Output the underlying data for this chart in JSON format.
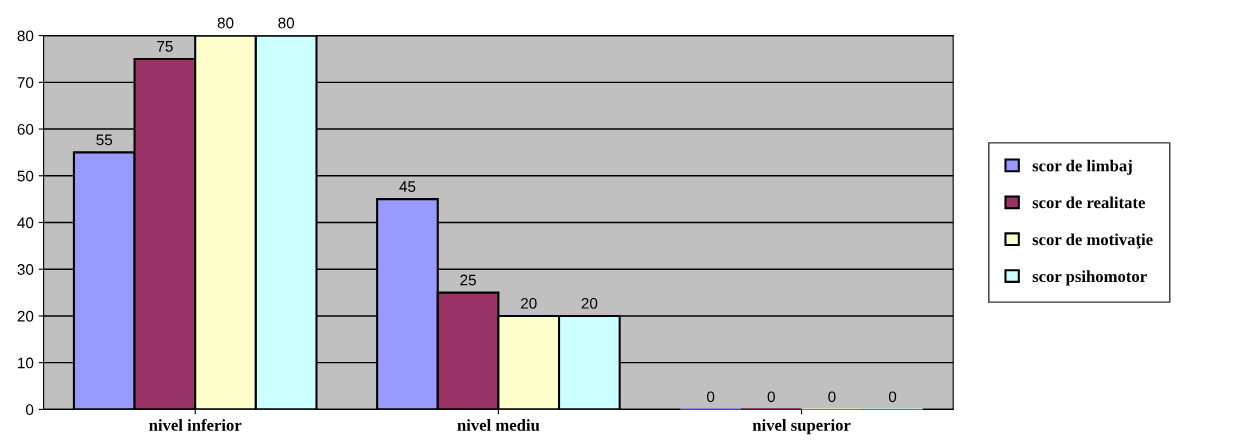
{
  "chart_data": {
    "type": "bar",
    "categories": [
      "nivel inferior",
      "nivel mediu",
      "nivel superior"
    ],
    "series": [
      {
        "name": "scor de limbaj",
        "color": "#9999ff",
        "values": [
          55,
          45,
          0
        ]
      },
      {
        "name": "scor de realitate",
        "color": "#993366",
        "values": [
          75,
          25,
          0
        ]
      },
      {
        "name": "scor de motivaţie",
        "color": "#ffffcc",
        "values": [
          80,
          20,
          0
        ]
      },
      {
        "name": "scor psihomotor",
        "color": "#ccffff",
        "values": [
          80,
          20,
          0
        ]
      }
    ],
    "ylim": [
      0,
      80
    ],
    "yticks": [
      0,
      10,
      20,
      30,
      40,
      50,
      60,
      70,
      80
    ],
    "grid": "y",
    "legend": "right",
    "data_labels": true
  }
}
